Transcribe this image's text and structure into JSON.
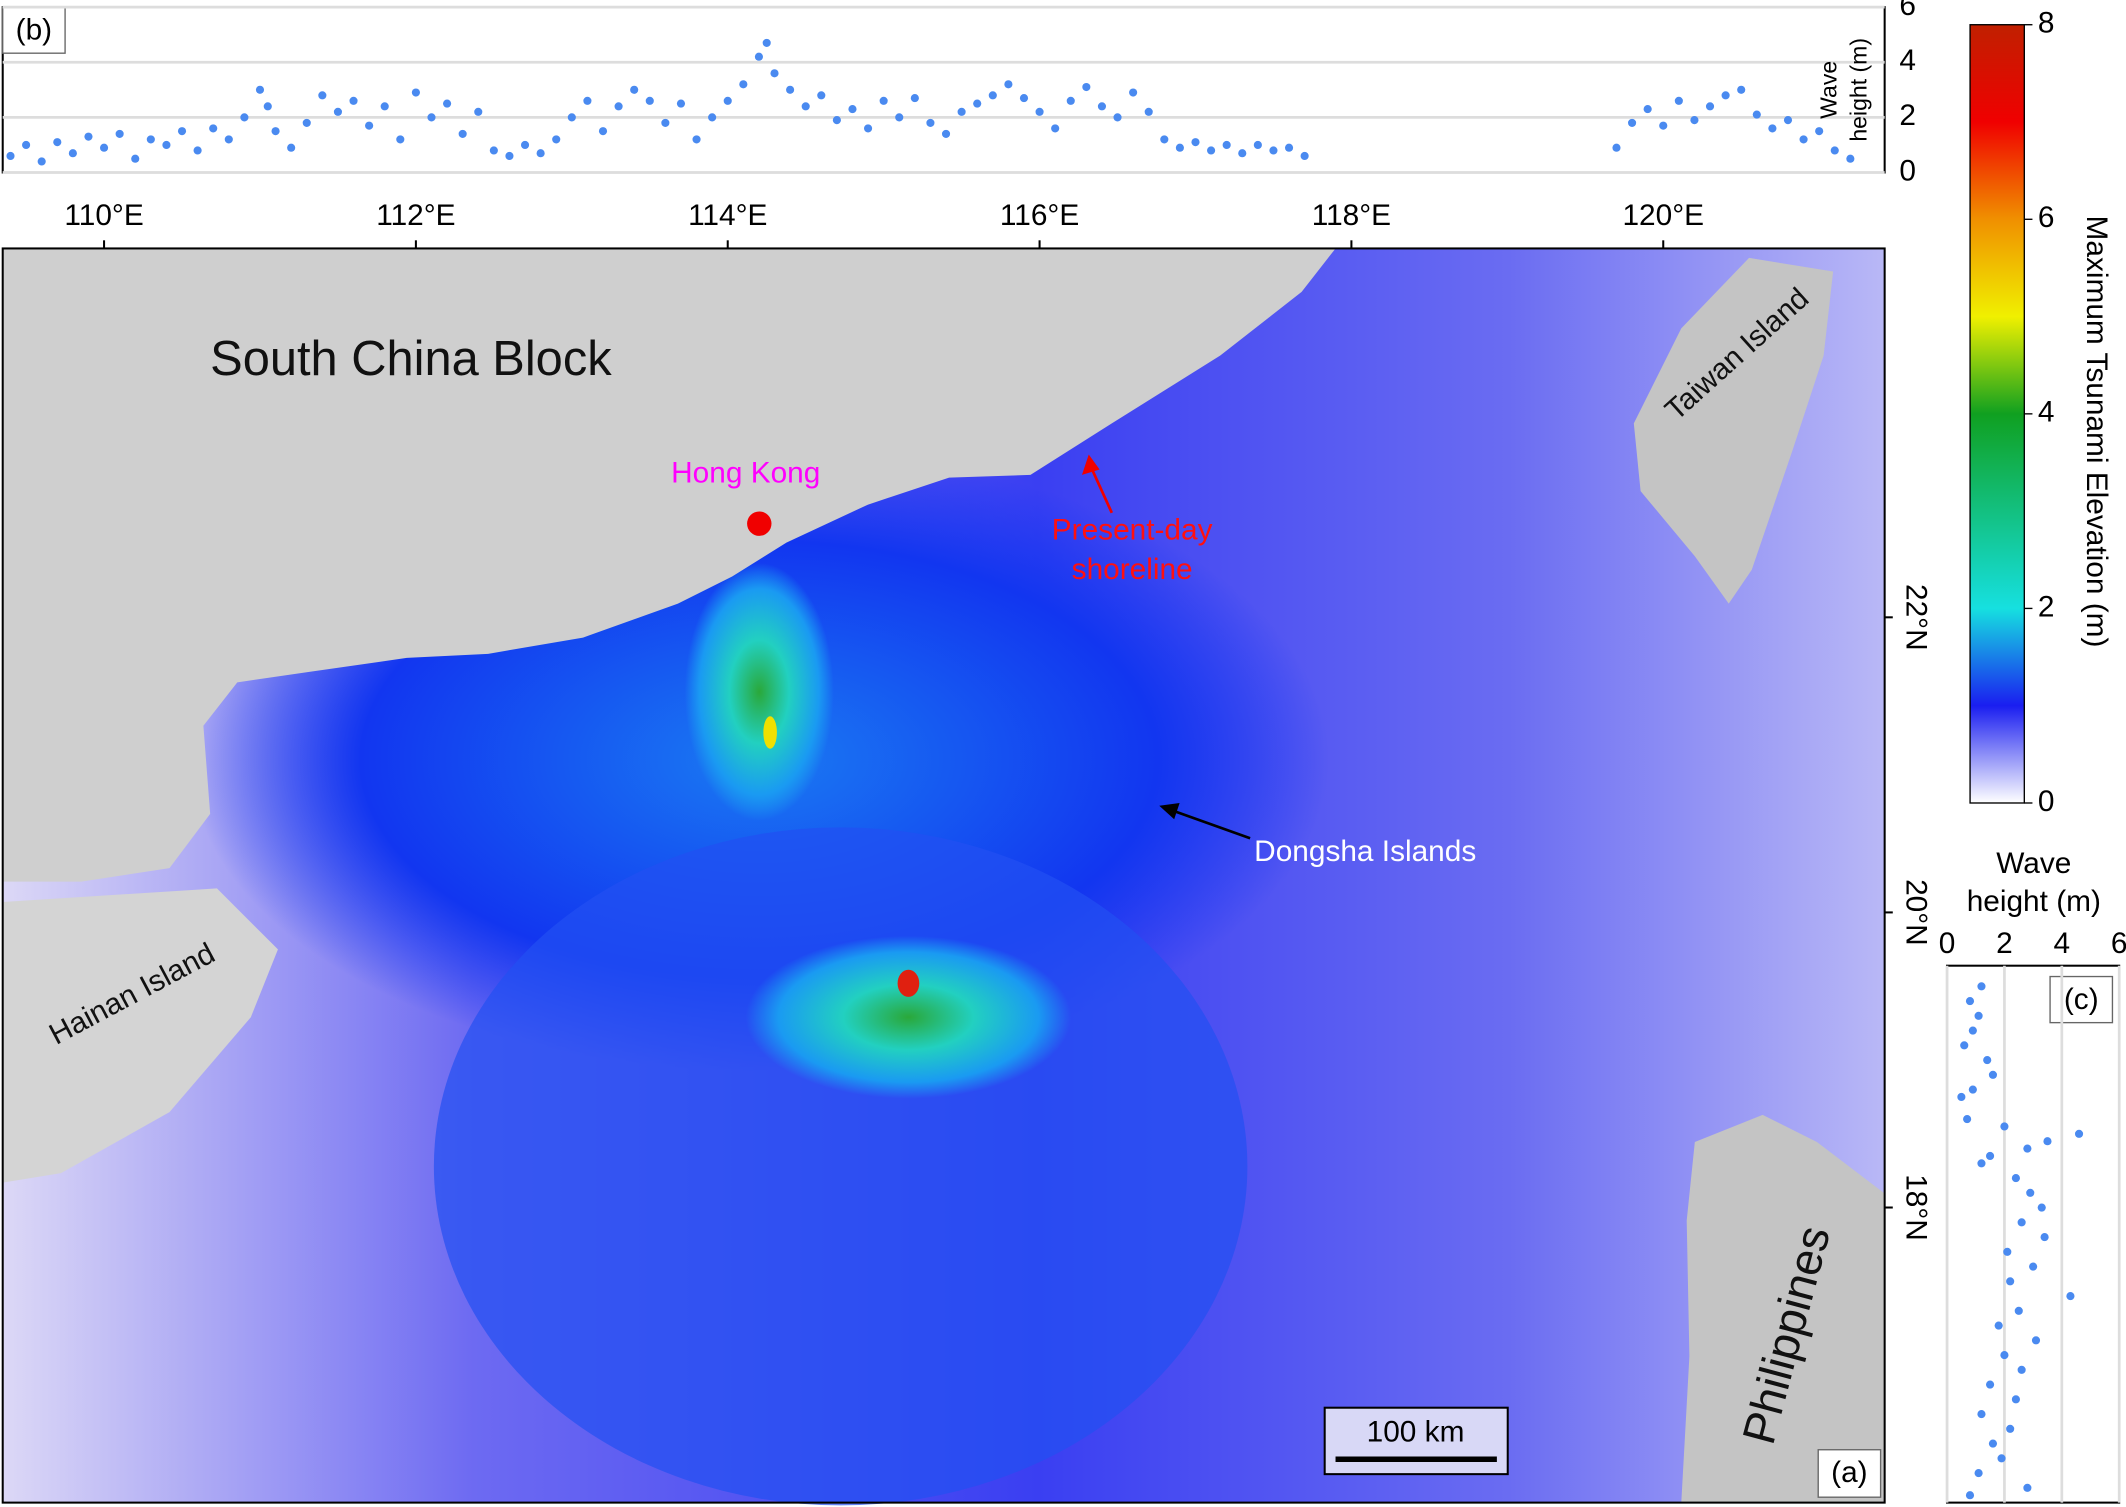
{
  "map": {
    "panel_label": "(a)",
    "xlim": [
      109.35,
      121.42
    ],
    "ylim": [
      16.0,
      24.5
    ],
    "xticks": [
      {
        "value": 110,
        "label": "110°E"
      },
      {
        "value": 112,
        "label": "112°E"
      },
      {
        "value": 114,
        "label": "114°E"
      },
      {
        "value": 116,
        "label": "116°E"
      },
      {
        "value": 118,
        "label": "118°E"
      },
      {
        "value": 120,
        "label": "120°E"
      }
    ],
    "yticks": [
      {
        "value": 22,
        "label": "22°N"
      },
      {
        "value": 20,
        "label": "20°N"
      },
      {
        "value": 18,
        "label": "18°N"
      }
    ],
    "labels": [
      "South China Block",
      "Hong Kong",
      "Present-day",
      "shoreline",
      "Dongsha Islands",
      "Taiwan Island",
      "Hainan Island",
      "Philippines"
    ],
    "scale_bar": "100 km"
  },
  "colorbar": {
    "title": "Maximum Tsunami Elevation (m)",
    "lim": [
      0,
      8
    ],
    "ticks": [
      0,
      2,
      4,
      6,
      8
    ]
  },
  "chart_data": [
    {
      "type": "scatter",
      "panel_label": "(b)",
      "y_label": [
        "Wave",
        "height (m)"
      ],
      "color": "#4a8af0",
      "xlim": [
        109.35,
        121.42
      ],
      "ylim": [
        0,
        6
      ],
      "yticks": [
        0,
        2,
        4,
        6
      ],
      "grid": true,
      "x": [
        109.4,
        109.5,
        109.6,
        109.7,
        109.8,
        109.9,
        110.0,
        110.1,
        110.2,
        110.3,
        110.4,
        110.5,
        110.6,
        110.7,
        110.8,
        110.9,
        111.0,
        111.05,
        111.1,
        111.2,
        111.3,
        111.4,
        111.5,
        111.6,
        111.7,
        111.8,
        111.9,
        112.0,
        112.1,
        112.2,
        112.3,
        112.4,
        112.5,
        112.6,
        112.7,
        112.8,
        112.9,
        113.0,
        113.1,
        113.2,
        113.3,
        113.4,
        113.5,
        113.6,
        113.7,
        113.8,
        113.9,
        114.0,
        114.1,
        114.2,
        114.25,
        114.3,
        114.4,
        114.5,
        114.6,
        114.7,
        114.8,
        114.9,
        115.0,
        115.1,
        115.2,
        115.3,
        115.4,
        115.5,
        115.6,
        115.7,
        115.8,
        115.9,
        116.0,
        116.1,
        116.2,
        116.3,
        116.4,
        116.5,
        116.6,
        116.7,
        116.8,
        116.9,
        117.0,
        117.1,
        117.2,
        117.3,
        117.4,
        117.5,
        117.6,
        117.7,
        119.7,
        119.8,
        119.9,
        120.0,
        120.1,
        120.2,
        120.3,
        120.4,
        120.5,
        120.6,
        120.7,
        120.8,
        120.9,
        121.0,
        121.1,
        121.2
      ],
      "values": [
        0.6,
        1.0,
        0.4,
        1.1,
        0.7,
        1.3,
        0.9,
        1.4,
        0.5,
        1.2,
        1.0,
        1.5,
        0.8,
        1.6,
        1.2,
        2.0,
        3.0,
        2.4,
        1.5,
        0.9,
        1.8,
        2.8,
        2.2,
        2.6,
        1.7,
        2.4,
        1.2,
        2.9,
        2.0,
        2.5,
        1.4,
        2.2,
        0.8,
        0.6,
        1.0,
        0.7,
        1.2,
        2.0,
        2.6,
        1.5,
        2.4,
        3.0,
        2.6,
        1.8,
        2.5,
        1.2,
        2.0,
        2.6,
        3.2,
        4.2,
        4.7,
        3.6,
        3.0,
        2.4,
        2.8,
        1.9,
        2.3,
        1.6,
        2.6,
        2.0,
        2.7,
        1.8,
        1.4,
        2.2,
        2.5,
        2.8,
        3.2,
        2.7,
        2.2,
        1.6,
        2.6,
        3.1,
        2.4,
        2.0,
        2.9,
        2.2,
        1.2,
        0.9,
        1.1,
        0.8,
        1.0,
        0.7,
        1.0,
        0.8,
        0.9,
        0.6,
        0.9,
        1.8,
        2.3,
        1.7,
        2.6,
        1.9,
        2.4,
        2.8,
        3.0,
        2.1,
        1.6,
        1.9,
        1.2,
        1.5,
        0.8,
        0.5
      ]
    },
    {
      "type": "scatter",
      "panel_label": "(c)",
      "x_label": [
        "Wave",
        "height (m)"
      ],
      "color": "#4a8af0",
      "xlim": [
        0,
        6
      ],
      "xticks": [
        0,
        2,
        4,
        6
      ],
      "ylim": [
        16.0,
        19.64
      ],
      "grid": true,
      "y": [
        19.5,
        19.4,
        19.3,
        19.2,
        19.1,
        19.0,
        18.9,
        18.8,
        18.75,
        18.6,
        18.55,
        18.5,
        18.45,
        18.4,
        18.35,
        18.3,
        18.2,
        18.1,
        18.0,
        17.9,
        17.8,
        17.7,
        17.6,
        17.5,
        17.4,
        17.3,
        17.2,
        17.1,
        17.0,
        16.9,
        16.8,
        16.7,
        16.6,
        16.5,
        16.4,
        16.3,
        16.2,
        16.1,
        16.05
      ],
      "values": [
        1.2,
        0.8,
        1.1,
        0.9,
        0.6,
        1.4,
        1.6,
        0.9,
        0.5,
        0.7,
        2.0,
        4.6,
        3.5,
        2.8,
        1.5,
        1.2,
        2.4,
        2.9,
        3.3,
        2.6,
        3.4,
        2.1,
        3.0,
        2.2,
        4.3,
        2.5,
        1.8,
        3.1,
        2.0,
        2.6,
        1.5,
        2.4,
        1.2,
        2.2,
        1.6,
        1.9,
        1.1,
        2.8,
        0.8
      ]
    }
  ]
}
